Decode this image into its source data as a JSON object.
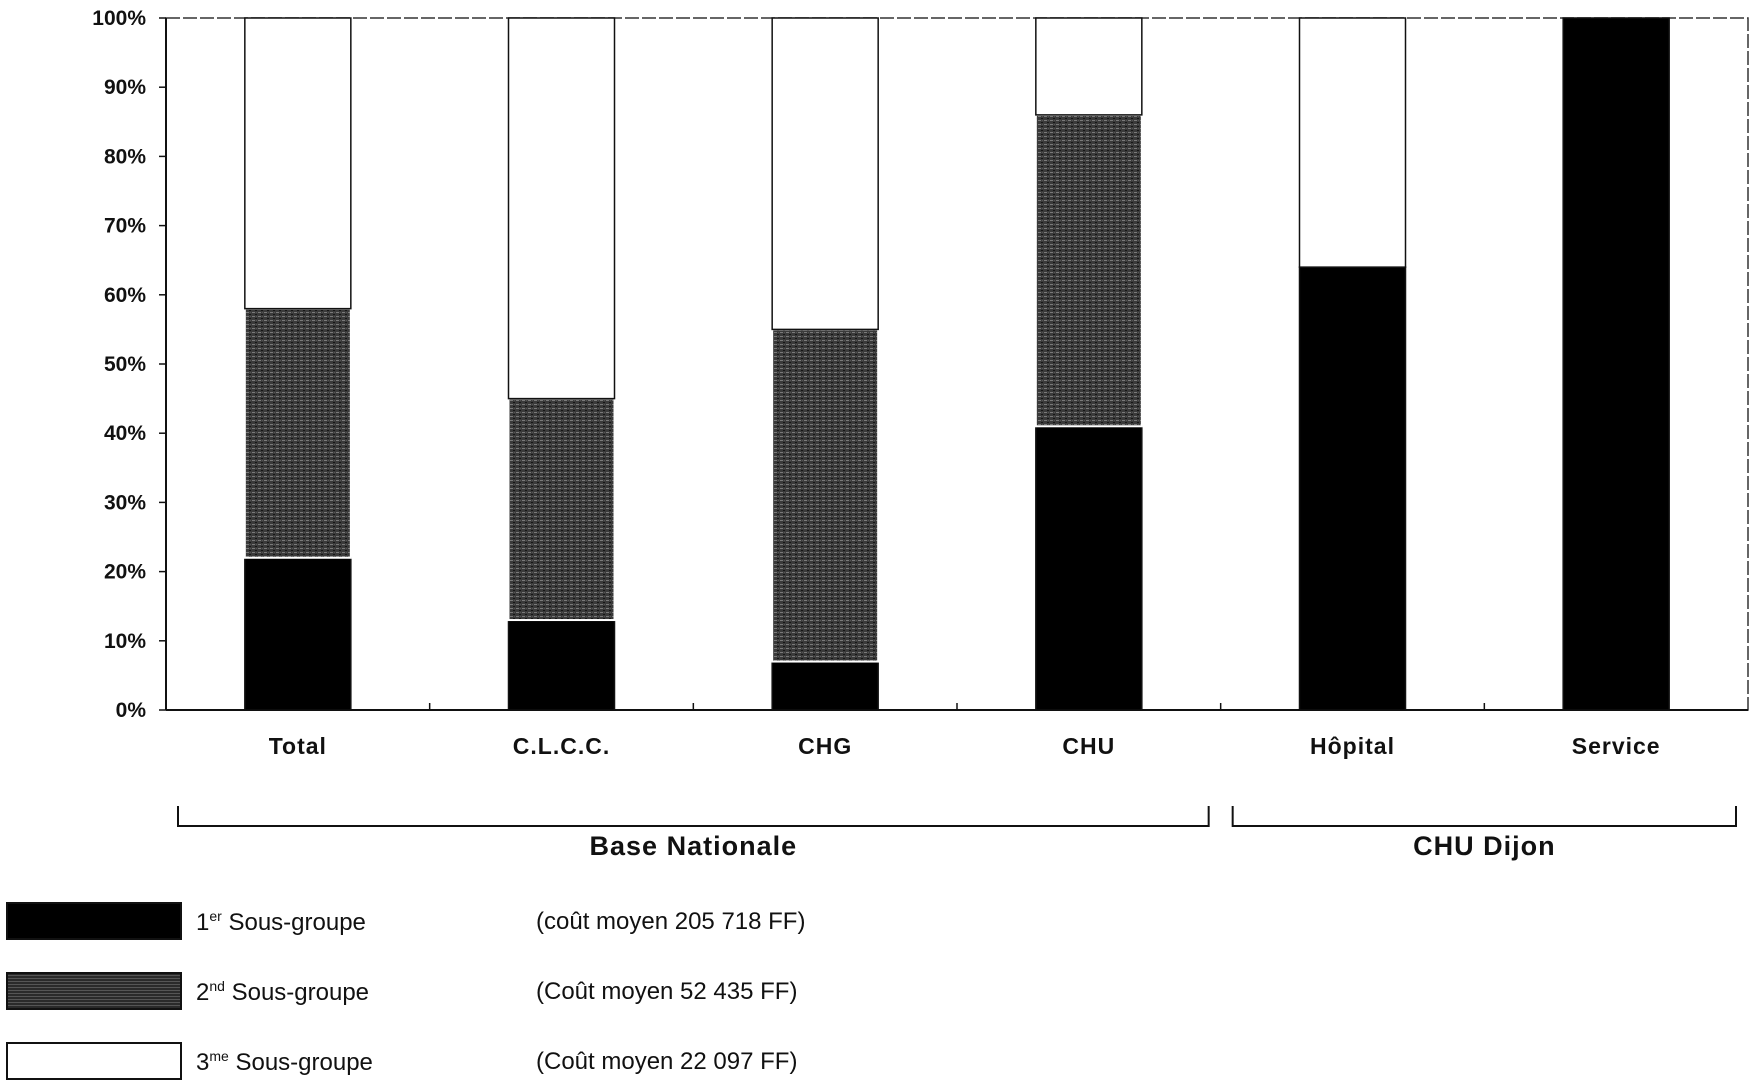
{
  "chart_data": {
    "type": "bar",
    "stacked": true,
    "normalized": true,
    "title": "",
    "xlabel": "",
    "ylabel": "",
    "ylim": [
      0,
      100
    ],
    "yticks": [
      "0%",
      "10%",
      "20%",
      "30%",
      "40%",
      "50%",
      "60%",
      "70%",
      "80%",
      "90%",
      "100%"
    ],
    "categories": [
      "Total",
      "C.L.C.C.",
      "CHG",
      "CHU",
      "Hôpital",
      "Service"
    ],
    "groups": [
      {
        "label": "Base Nationale",
        "categories": [
          "Total",
          "C.L.C.C.",
          "CHG",
          "CHU"
        ]
      },
      {
        "label": "CHU Dijon",
        "categories": [
          "Hôpital",
          "Service"
        ]
      }
    ],
    "series": [
      {
        "name": "1er Sous-groupe",
        "values": [
          22,
          13,
          7,
          41,
          64,
          100
        ],
        "color": "#000000"
      },
      {
        "name": "2nd Sous-groupe",
        "values": [
          36,
          32,
          48,
          45,
          0,
          0
        ],
        "color": "#3d3d3d"
      },
      {
        "name": "3ème Sous-groupe",
        "values": [
          42,
          55,
          45,
          14,
          36,
          0
        ],
        "color": "#ffffff"
      }
    ],
    "grid": false,
    "legend_position": "bottom-left"
  },
  "legend": [
    {
      "base": "1",
      "sup": "er",
      "text": " Sous-groupe",
      "note": "(coût moyen 205 718 FF)",
      "color": "#000000",
      "textured": false
    },
    {
      "base": "2",
      "sup": "nd",
      "text": " Sous-groupe",
      "note": "(Coût moyen 52 435 FF)",
      "color": "#3d3d3d",
      "textured": true
    },
    {
      "base": "3",
      "sup": "me",
      "text": " Sous-groupe",
      "note": "(Coût moyen 22 097 FF)",
      "color": "#ffffff",
      "textured": false
    }
  ]
}
